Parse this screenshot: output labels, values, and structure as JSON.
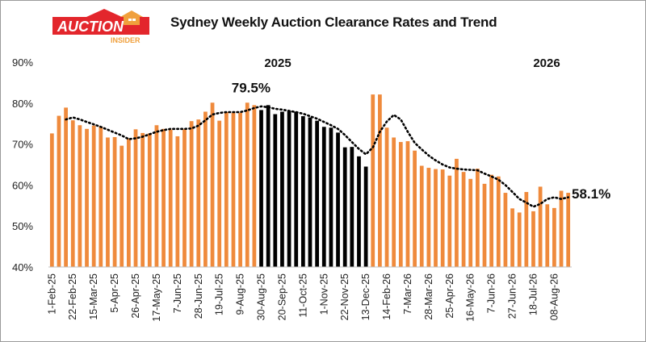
{
  "brand": {
    "logo_main": "AUCTION",
    "logo_sub": "INSIDER",
    "logo_red": "#e3262c",
    "logo_orange": "#f0a03c"
  },
  "chart_data": {
    "type": "bar",
    "title": "Sydney Weekly Auction Clearance Rates and Trend",
    "ylim": [
      0.4,
      0.9
    ],
    "y_ticks": [
      "40%",
      "50%",
      "60%",
      "70%",
      "80%",
      "90%"
    ],
    "x_tick_labels": [
      "1-Feb-25",
      "22-Feb-25",
      "15-Mar-25",
      "5-Apr-25",
      "26-Apr-25",
      "17-May-25",
      "7-Jun-25",
      "28-Jun-25",
      "19-Jul-25",
      "9-Aug-25",
      "30-Aug-25",
      "20-Sep-25",
      "11-Oct-25",
      "1-Nov-25",
      "22-Nov-25",
      "13-Dec-25",
      "14-Feb-26",
      "7-Mar-26",
      "28-Mar-26",
      "25-Apr-26",
      "16-May-26",
      "7-Jun-26",
      "27-Jun-26",
      "18-Jul-26",
      "08-Aug-26"
    ],
    "year_labels": [
      "2025",
      "2026"
    ],
    "series": [
      {
        "values": [
          0.726,
          0.769,
          0.789,
          0.758,
          0.746,
          0.737,
          0.745,
          0.743,
          0.716,
          0.717,
          0.696,
          0.714,
          0.736,
          0.727,
          0.726,
          0.746,
          0.737,
          0.735,
          0.719,
          0.736,
          0.756,
          0.76,
          0.779,
          0.801,
          0.757,
          0.778,
          0.776,
          0.776,
          0.801,
          0.795,
          0.783,
          0.795,
          0.773,
          0.779,
          0.781,
          0.779,
          0.768,
          0.765,
          0.757,
          0.742,
          0.74,
          0.728,
          0.692,
          0.693,
          0.67,
          0.645,
          0.821,
          0.821,
          0.74,
          0.716,
          0.705,
          0.707,
          0.684,
          0.647,
          0.642,
          0.639,
          0.638,
          0.623,
          0.664,
          0.632,
          0.615,
          0.64,
          0.603,
          0.625,
          0.621,
          0.581,
          0.543,
          0.533,
          0.583,
          0.536,
          0.596,
          0.553,
          0.544,
          0.586,
          0.581
        ]
      },
      {
        "values": [
          null,
          null,
          0.76,
          0.765,
          0.76,
          0.754,
          0.748,
          0.742,
          0.735,
          0.728,
          0.721,
          0.712,
          0.714,
          0.718,
          0.724,
          0.73,
          0.734,
          0.737,
          0.737,
          0.737,
          0.738,
          0.745,
          0.758,
          0.772,
          0.776,
          0.778,
          0.778,
          0.778,
          0.782,
          0.788,
          0.792,
          0.79,
          0.786,
          0.784,
          0.781,
          0.778,
          0.774,
          0.768,
          0.762,
          0.754,
          0.746,
          0.737,
          0.722,
          0.705,
          0.688,
          0.675,
          0.692,
          0.73,
          0.755,
          0.771,
          0.76,
          0.73,
          0.703,
          0.687,
          0.672,
          0.66,
          0.65,
          0.643,
          0.64,
          0.638,
          0.637,
          0.636,
          0.628,
          0.621,
          0.613,
          0.6,
          0.583,
          0.566,
          0.557,
          0.547,
          0.554,
          0.566,
          0.57,
          0.566,
          0.57
        ]
      }
    ],
    "colors": {
      "bars": "#ef8a3c",
      "highlight": "#000000",
      "trend": "#000000",
      "axis": "#bfbfbf"
    },
    "highlight_range": [
      30,
      45
    ],
    "annotations": [
      {
        "text": "79.5%",
        "bar_index": 29
      },
      {
        "text": "58.1%",
        "bar_index": 74
      }
    ],
    "grid": false,
    "legend": "none"
  }
}
